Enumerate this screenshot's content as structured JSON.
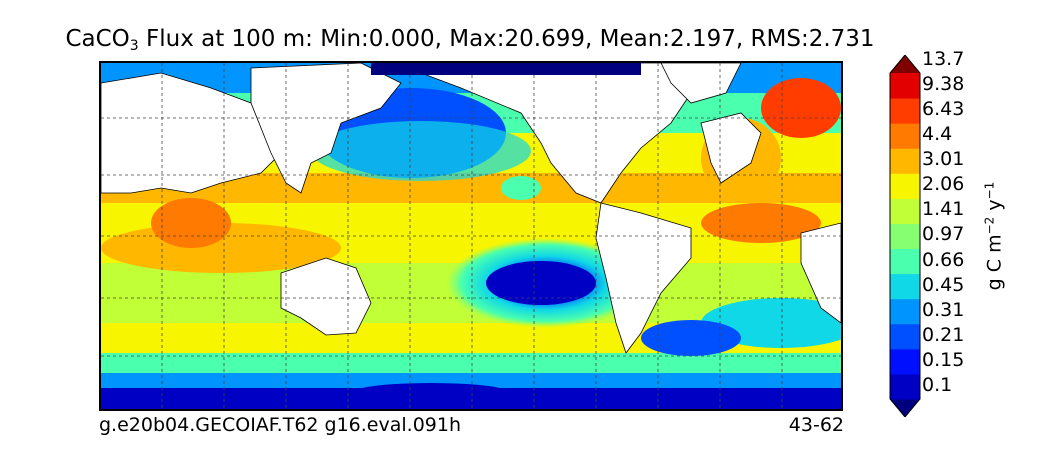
{
  "title": {
    "prefix": "CaCO",
    "subscript": "3",
    "rest": " Flux at 100 m: Min:0.000, Max:20.699, Mean:2.197, RMS:2.731"
  },
  "footer": {
    "left": "g.e20b04.GECOIAF.T62 g16.eval.091h",
    "right": "43-62"
  },
  "colorbar": {
    "label_main": "g C m",
    "label_exp1": "−2",
    "label_mid": " y",
    "label_exp2": "−1",
    "ticks": [
      "0.1",
      "0.15",
      "0.21",
      "0.31",
      "0.45",
      "0.66",
      "0.97",
      "1.41",
      "2.06",
      "3.01",
      "4.4",
      "6.43",
      "9.38",
      "13.7"
    ],
    "colors": [
      "#00007f",
      "#0000c4",
      "#0010ff",
      "#0050ff",
      "#0094ff",
      "#10d8e6",
      "#4affad",
      "#86ff70",
      "#c1ff36",
      "#f8f500",
      "#ffb700",
      "#ff7a00",
      "#ff3d00",
      "#e30000",
      "#7f0000"
    ]
  }
}
